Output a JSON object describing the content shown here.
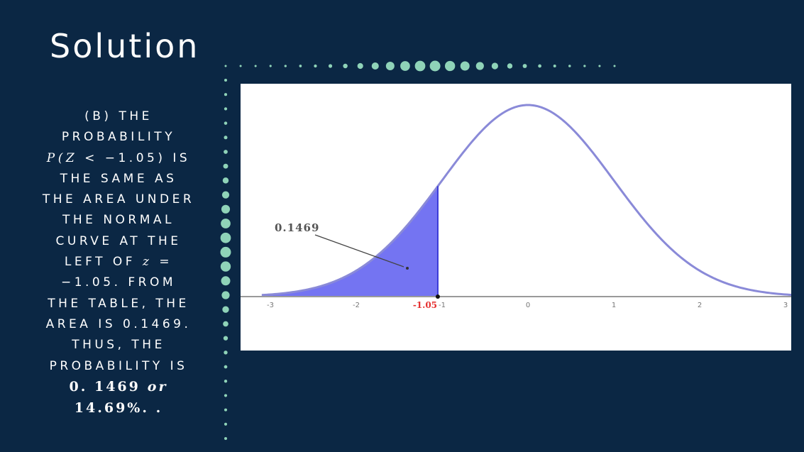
{
  "slide": {
    "title": "Solution",
    "text": {
      "l1": "(B) THE",
      "l2": "PROBABILITY",
      "l3_expr": "P(Z",
      "l3_rest": "< −1.05) IS",
      "l4": "THE SAME AS",
      "l5": "THE AREA UNDER",
      "l6": "THE NORMAL",
      "l7": "CURVE AT THE",
      "l8_a": "LEFT OF",
      "l8_z": "z",
      "l8_b": "=",
      "l9": "−1.05. FROM",
      "l10": "THE TABLE, THE",
      "l11": "AREA IS 0.1469.",
      "l12": "THUS, THE",
      "l13": "PROBABILITY IS",
      "l14_a": "0. 1469",
      "l14_or": "or",
      "l15": "14.69%. ."
    }
  },
  "graph": {
    "area_label": "0.1469",
    "z_label": "-1.05",
    "z_value": -1.05,
    "ticks": [
      "-3",
      "-2",
      "-1",
      "0",
      "1",
      "2",
      "3"
    ],
    "curve_color": "#8a8ad8",
    "fill_color": "#7474f2",
    "z_label_color": "#e53030"
  },
  "decor": {
    "dot_color": "#8fd3b8"
  }
}
